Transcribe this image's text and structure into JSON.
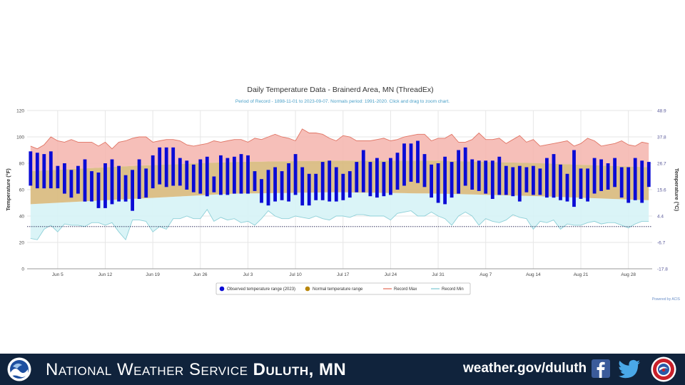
{
  "footer": {
    "org_prefix": "National Weather Service",
    "office": "Duluth, MN",
    "website": "weather.gov/duluth"
  },
  "chart_data": {
    "type": "bar",
    "title": "Daily Temperature Data - Brainerd Area, MN (ThreadEx)",
    "subtitle": "Period of Record - 1898-11-01 to 2023-09-07. Normals period: 1991-2020. Click and drag to zoom chart.",
    "ylabel": "Temperature (°F)",
    "ylabel_right": "Temperature (°C)",
    "credit": "Powered by ACIS",
    "ylim": [
      0,
      120
    ],
    "yticks": [
      0,
      20,
      40,
      60,
      80,
      100,
      120
    ],
    "yticks_right": [
      "-17.8",
      "-6.7",
      "4.4",
      "15.6",
      "26.7",
      "37.8",
      "48.9"
    ],
    "grid": true,
    "legend_position": "bottom-center",
    "x_tick_labels": [
      "Jun 5",
      "Jun 12",
      "Jun 19",
      "Jun 26",
      "Jul 3",
      "Jul 10",
      "Jul 17",
      "Jul 24",
      "Jul 31",
      "Aug 7",
      "Aug 14",
      "Aug 21",
      "Aug 28"
    ],
    "x_tick_days": [
      4,
      11,
      18,
      25,
      32,
      39,
      46,
      53,
      60,
      67,
      74,
      81,
      88
    ],
    "x_range_days": [
      -0.5,
      91.5
    ],
    "freezing_line": 32,
    "legend": [
      {
        "name": "Observed temperature range (2023)",
        "color": "#0b0bd6"
      },
      {
        "name": "Normal temperature range",
        "color": "#b8860b"
      },
      {
        "name": "Record Max",
        "color": "#e8806f"
      },
      {
        "name": "Record Min",
        "color": "#8fd0d8"
      }
    ],
    "colors": {
      "observed": "#0b0bd6",
      "normal_fill": "#d8b97c",
      "record_max_fill": "#f5b4ad",
      "record_max_line": "#e07565",
      "record_min_fill": "#d6f3f6",
      "record_min_line": "#8fd0d8",
      "freezing": "#1a1a4a",
      "grid": "#e6e6e6"
    },
    "normal_range": {
      "days": [
        0,
        15,
        30,
        45,
        60,
        75,
        91
      ],
      "low": [
        49,
        53,
        57,
        58,
        57,
        55,
        52
      ],
      "high": [
        74,
        78,
        81,
        82,
        82,
        80,
        77
      ]
    },
    "record_max": [
      93,
      91,
      94,
      100,
      97,
      96,
      98,
      96,
      96,
      96,
      93,
      96,
      91,
      96,
      97,
      99,
      100,
      100,
      96,
      97,
      98,
      98,
      97,
      94,
      93,
      94,
      95,
      97,
      96,
      97,
      98,
      98,
      96,
      99,
      98,
      100,
      102,
      100,
      99,
      97,
      106,
      103,
      103,
      102,
      99,
      97,
      101,
      100,
      97,
      97,
      97,
      98,
      99,
      97,
      98,
      100,
      101,
      102,
      102,
      97,
      99,
      99,
      102,
      96,
      96,
      98,
      103,
      98,
      98,
      99,
      95,
      98,
      101,
      96,
      98,
      93,
      94,
      95,
      96,
      97,
      93,
      95,
      99,
      97,
      93,
      94,
      95,
      97,
      94,
      93,
      96,
      95
    ],
    "record_min": [
      23,
      22,
      30,
      33,
      28,
      34,
      33,
      33,
      32,
      35,
      35,
      33,
      35,
      28,
      22,
      37,
      37,
      36,
      28,
      32,
      30,
      38,
      38,
      40,
      38,
      38,
      45,
      36,
      39,
      37,
      38,
      35,
      36,
      33,
      38,
      44,
      40,
      38,
      38,
      40,
      39,
      38,
      40,
      38,
      37,
      40,
      40,
      39,
      41,
      41,
      40,
      40,
      40,
      37,
      42,
      43,
      44,
      40,
      40,
      43,
      40,
      38,
      33,
      40,
      43,
      40,
      33,
      38,
      36,
      35,
      37,
      41,
      39,
      38,
      30,
      36,
      35,
      37,
      30,
      34,
      33,
      33,
      35,
      36,
      34,
      35,
      35,
      33,
      31,
      34,
      36,
      36
    ],
    "observed": {
      "low": [
        63,
        61,
        61,
        61,
        61,
        57,
        54,
        57,
        51,
        51,
        46,
        46,
        49,
        51,
        51,
        44,
        53,
        54,
        61,
        64,
        62,
        63,
        63,
        60,
        58,
        57,
        55,
        58,
        56,
        56,
        57,
        57,
        57,
        59,
        50,
        48,
        51,
        52,
        51,
        56,
        48,
        48,
        52,
        52,
        51,
        51,
        52,
        54,
        58,
        58,
        55,
        54,
        55,
        56,
        60,
        63,
        66,
        65,
        62,
        54,
        50,
        49,
        54,
        57,
        63,
        60,
        59,
        57,
        53,
        56,
        56,
        55,
        51,
        58,
        56,
        56,
        54,
        54,
        52,
        51,
        47,
        53,
        51,
        57,
        59,
        60,
        62,
        54,
        50,
        52,
        50,
        62
      ],
      "high": [
        89,
        88,
        87,
        89,
        78,
        80,
        75,
        78,
        83,
        74,
        73,
        80,
        83,
        78,
        71,
        75,
        83,
        76,
        86,
        92,
        92,
        92,
        84,
        82,
        79,
        83,
        85,
        70,
        86,
        84,
        85,
        87,
        86,
        74,
        68,
        75,
        77,
        74,
        80,
        87,
        77,
        72,
        72,
        81,
        82,
        77,
        72,
        74,
        81,
        90,
        81,
        84,
        81,
        84,
        88,
        95,
        95,
        97,
        87,
        79,
        80,
        85,
        81,
        90,
        92,
        83,
        82,
        82,
        82,
        85,
        78,
        77,
        78,
        77,
        78,
        76,
        84,
        87,
        79,
        72,
        90,
        76,
        76,
        84,
        83,
        80,
        84,
        77,
        77,
        84,
        82,
        81
      ]
    }
  }
}
